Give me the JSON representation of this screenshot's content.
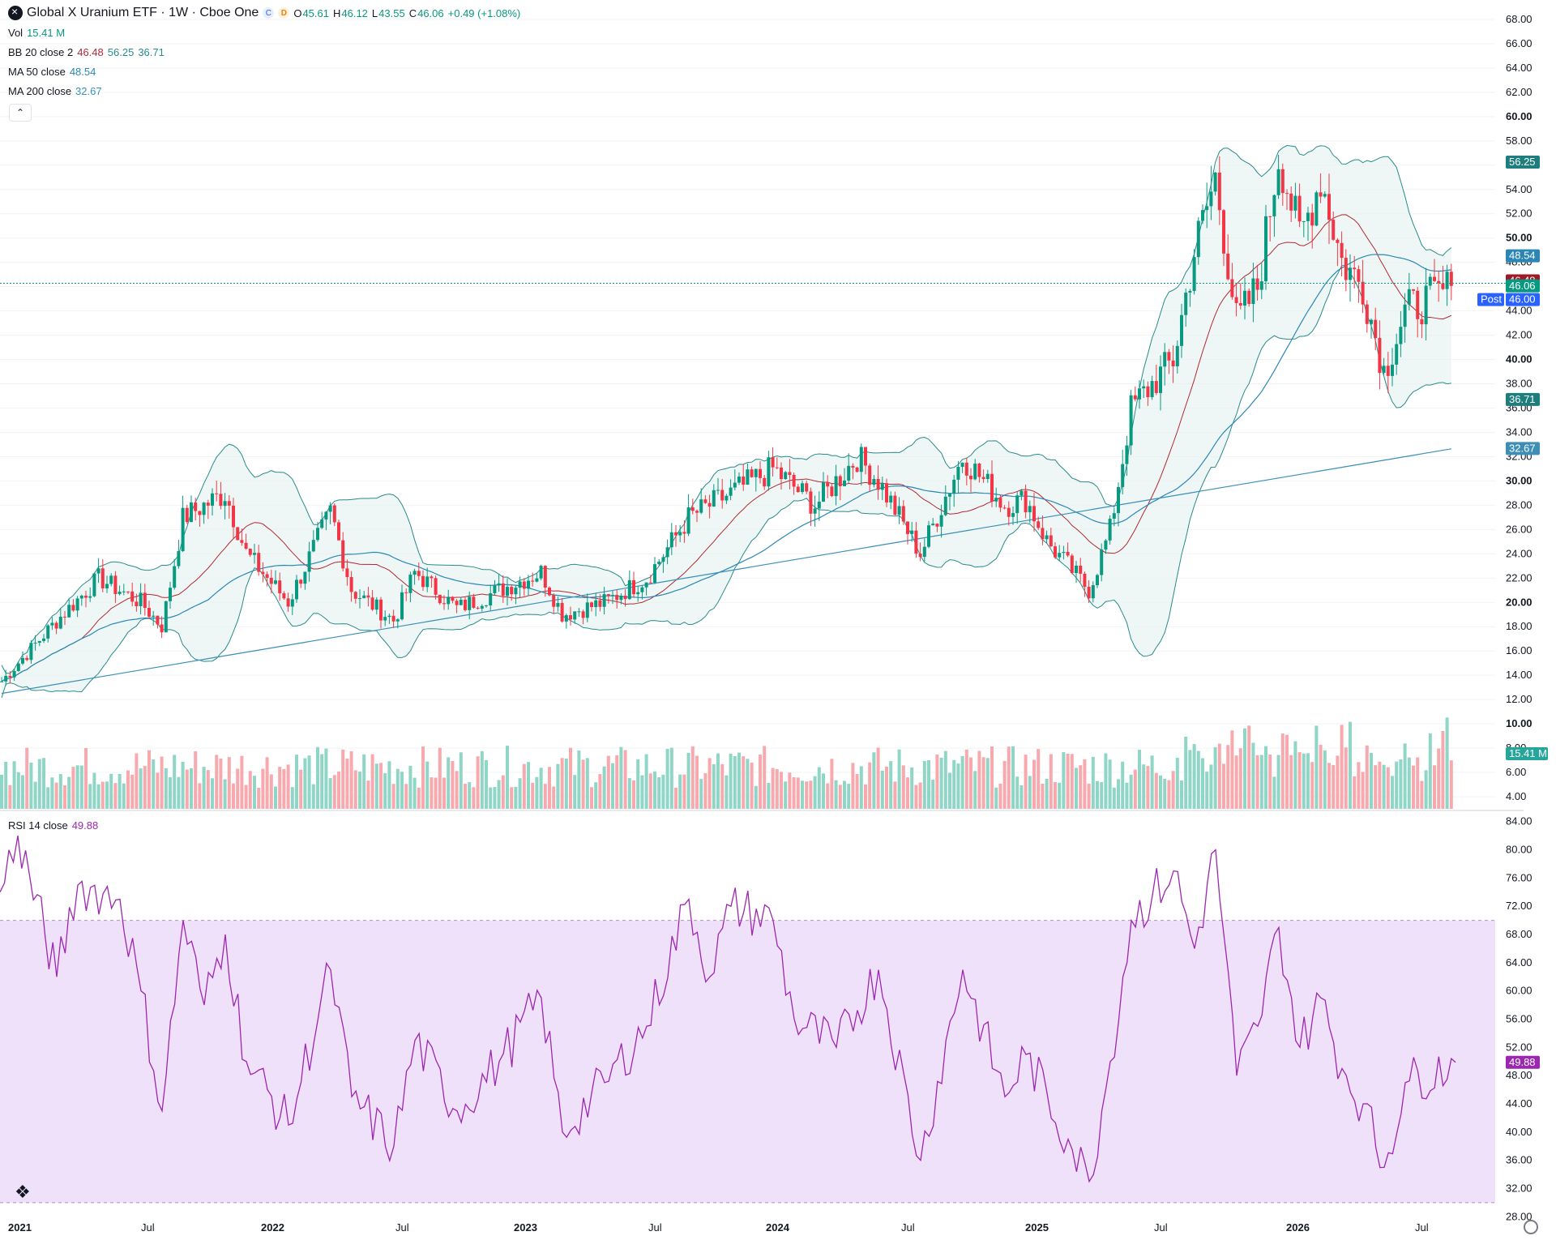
{
  "header": {
    "title": "Global X Uranium ETF · 1W · Cboe One",
    "badge_c": "C",
    "badge_d": "D",
    "open_label": "O",
    "open": "45.61",
    "high_label": "H",
    "high": "46.12",
    "low_label": "L",
    "low": "43.55",
    "close_label": "C",
    "close": "46.06",
    "change": "+0.49 (+1.08%)"
  },
  "legend": {
    "vol_label": "Vol",
    "vol_value": "15.41 M",
    "bb_label": "BB 20 close 2",
    "bb_basis": "46.48",
    "bb_upper": "56.25",
    "bb_lower": "36.71",
    "ma50_label": "MA 50 close",
    "ma50_value": "48.54",
    "ma200_label": "MA 200 close",
    "ma200_value": "32.67",
    "rsi_label": "RSI 14 close",
    "rsi_value": "49.88"
  },
  "colors": {
    "up": "#089981",
    "down": "#f23645",
    "bb": "#2a8b8b",
    "basis": "#b22833",
    "ma50": "#2a87b5",
    "ma200": "#3d8fb8",
    "rsi": "#9c27b0",
    "rsi_band": "#f0e1fb",
    "post": "#2962ff"
  },
  "price_axis": {
    "ticks": [
      "68.00",
      "66.00",
      "64.00",
      "62.00",
      "60.00",
      "58.00",
      "56.00",
      "54.00",
      "52.00",
      "50.00",
      "48.00",
      "46.00",
      "44.00",
      "42.00",
      "40.00",
      "38.00",
      "36.00",
      "34.00",
      "32.00",
      "30.00",
      "28.00",
      "26.00",
      "24.00",
      "22.00",
      "20.00",
      "18.00",
      "16.00",
      "14.00",
      "12.00",
      "10.00",
      "8.00",
      "6.00",
      "4.00"
    ],
    "bold": [
      "60.00",
      "50.00",
      "40.00",
      "30.00",
      "20.00",
      "10.00"
    ]
  },
  "rsi_axis": {
    "ticks": [
      "84.00",
      "80.00",
      "76.00",
      "72.00",
      "68.00",
      "64.00",
      "60.00",
      "56.00",
      "52.00",
      "48.00",
      "44.00",
      "40.00",
      "36.00",
      "32.00",
      "28.00"
    ]
  },
  "time_axis": {
    "labels": [
      {
        "text": "2021",
        "bold": true
      },
      {
        "text": "Jul",
        "bold": false
      },
      {
        "text": "2022",
        "bold": true
      },
      {
        "text": "Jul",
        "bold": false
      },
      {
        "text": "2023",
        "bold": true
      },
      {
        "text": "Jul",
        "bold": false
      },
      {
        "text": "2024",
        "bold": true
      },
      {
        "text": "Jul",
        "bold": false
      },
      {
        "text": "2025",
        "bold": true
      },
      {
        "text": "Jul",
        "bold": false
      },
      {
        "text": "2026",
        "bold": true
      },
      {
        "text": "Jul",
        "bold": false
      }
    ]
  },
  "price_tags": {
    "bb_upper": "56.25",
    "ma50": "48.54",
    "bb_basis": "46.48",
    "last": "46.06",
    "post_label": "Post",
    "post": "46.00",
    "bb_lower": "36.71",
    "ma200": "32.67",
    "volume": "15.41 M",
    "rsi": "49.88"
  },
  "chart_data": {
    "type": "candlestick",
    "title": "Global X Uranium ETF · 1W · Cboe One",
    "price_range": [
      3.2,
      68.8
    ],
    "rsi_range": [
      27.0,
      85.0
    ],
    "rsi_band": [
      30,
      70
    ],
    "last_price": 46.06,
    "candle_anchors": [
      {
        "date": "2021-01",
        "close": 13.5
      },
      {
        "date": "2021-03",
        "close": 18.5
      },
      {
        "date": "2021-05",
        "close": 22.0
      },
      {
        "date": "2021-07",
        "close": 20.0
      },
      {
        "date": "2021-08",
        "close": 18.0
      },
      {
        "date": "2021-09",
        "close": 27.0
      },
      {
        "date": "2021-11",
        "close": 29.0
      },
      {
        "date": "2021-12",
        "close": 24.0
      },
      {
        "date": "2022-02",
        "close": 20.0
      },
      {
        "date": "2022-04",
        "close": 27.5
      },
      {
        "date": "2022-05",
        "close": 21.0
      },
      {
        "date": "2022-07",
        "close": 18.5
      },
      {
        "date": "2022-08",
        "close": 22.5
      },
      {
        "date": "2022-10",
        "close": 19.5
      },
      {
        "date": "2022-12",
        "close": 21.0
      },
      {
        "date": "2023-02",
        "close": 22.5
      },
      {
        "date": "2023-03",
        "close": 19.0
      },
      {
        "date": "2023-05",
        "close": 20.0
      },
      {
        "date": "2023-07",
        "close": 22.0
      },
      {
        "date": "2023-09",
        "close": 27.0
      },
      {
        "date": "2023-11",
        "close": 29.0
      },
      {
        "date": "2024-01",
        "close": 31.0
      },
      {
        "date": "2024-03",
        "close": 28.0
      },
      {
        "date": "2024-05",
        "close": 32.0
      },
      {
        "date": "2024-06",
        "close": 30.0
      },
      {
        "date": "2024-08",
        "close": 24.0
      },
      {
        "date": "2024-09",
        "close": 28.0
      },
      {
        "date": "2024-10",
        "close": 32.0
      },
      {
        "date": "2024-12",
        "close": 28.0
      },
      {
        "date": "2025-01",
        "close": 28.5
      },
      {
        "date": "2025-02",
        "close": 25.0
      },
      {
        "date": "2025-04",
        "close": 21.0
      },
      {
        "date": "2025-05",
        "close": 26.0
      },
      {
        "date": "2025-06",
        "close": 36.0
      },
      {
        "date": "2025-08",
        "close": 40.0
      },
      {
        "date": "2025-09",
        "close": 49.0
      },
      {
        "date": "2025-10",
        "close": 55.0
      },
      {
        "date": "2025-11",
        "close": 43.0
      },
      {
        "date": "2025-12",
        "close": 46.0
      },
      {
        "date": "2026-01",
        "close": 57.0
      },
      {
        "date": "2026-02",
        "close": 50.0
      },
      {
        "date": "2026-03",
        "close": 55.0
      },
      {
        "date": "2026-04",
        "close": 48.0
      },
      {
        "date": "2026-05",
        "close": 46.0
      },
      {
        "date": "2026-06",
        "close": 39.0
      },
      {
        "date": "2026-07",
        "close": 44.0
      },
      {
        "date": "2026-08",
        "close": 46.06
      }
    ],
    "rsi_anchors": [
      {
        "date": "2021-01",
        "rsi": 74
      },
      {
        "date": "2021-01",
        "rsi": 82
      },
      {
        "date": "2021-03",
        "rsi": 62
      },
      {
        "date": "2021-04",
        "rsi": 75
      },
      {
        "date": "2021-06",
        "rsi": 73
      },
      {
        "date": "2021-07",
        "rsi": 60
      },
      {
        "date": "2021-08",
        "rsi": 43
      },
      {
        "date": "2021-09",
        "rsi": 70
      },
      {
        "date": "2021-10",
        "rsi": 58
      },
      {
        "date": "2021-11",
        "rsi": 68
      },
      {
        "date": "2021-12",
        "rsi": 50
      },
      {
        "date": "2022-02",
        "rsi": 41
      },
      {
        "date": "2022-04",
        "rsi": 63
      },
      {
        "date": "2022-05",
        "rsi": 45
      },
      {
        "date": "2022-07",
        "rsi": 38
      },
      {
        "date": "2022-08",
        "rsi": 53
      },
      {
        "date": "2022-10",
        "rsi": 43
      },
      {
        "date": "2022-12",
        "rsi": 50
      },
      {
        "date": "2023-02",
        "rsi": 59
      },
      {
        "date": "2023-03",
        "rsi": 40
      },
      {
        "date": "2023-05",
        "rsi": 47
      },
      {
        "date": "2023-07",
        "rsi": 55
      },
      {
        "date": "2023-09",
        "rsi": 73
      },
      {
        "date": "2023-10",
        "rsi": 62
      },
      {
        "date": "2023-11",
        "rsi": 72
      },
      {
        "date": "2024-01",
        "rsi": 70
      },
      {
        "date": "2024-02",
        "rsi": 56
      },
      {
        "date": "2024-04",
        "rsi": 52
      },
      {
        "date": "2024-06",
        "rsi": 63
      },
      {
        "date": "2024-08",
        "rsi": 36
      },
      {
        "date": "2024-10",
        "rsi": 63
      },
      {
        "date": "2024-12",
        "rsi": 45
      },
      {
        "date": "2025-01",
        "rsi": 51
      },
      {
        "date": "2025-03",
        "rsi": 39
      },
      {
        "date": "2025-04",
        "rsi": 33
      },
      {
        "date": "2025-05",
        "rsi": 50
      },
      {
        "date": "2025-06",
        "rsi": 70
      },
      {
        "date": "2025-08",
        "rsi": 77
      },
      {
        "date": "2025-09",
        "rsi": 66
      },
      {
        "date": "2025-10",
        "rsi": 80
      },
      {
        "date": "2025-11",
        "rsi": 48
      },
      {
        "date": "2025-12",
        "rsi": 55
      },
      {
        "date": "2026-01",
        "rsi": 69
      },
      {
        "date": "2026-02",
        "rsi": 52
      },
      {
        "date": "2026-03",
        "rsi": 59
      },
      {
        "date": "2026-04",
        "rsi": 49
      },
      {
        "date": "2026-05",
        "rsi": 44
      },
      {
        "date": "2026-06",
        "rsi": 35
      },
      {
        "date": "2026-07",
        "rsi": 47
      },
      {
        "date": "2026-08",
        "rsi": 49.88
      }
    ]
  }
}
